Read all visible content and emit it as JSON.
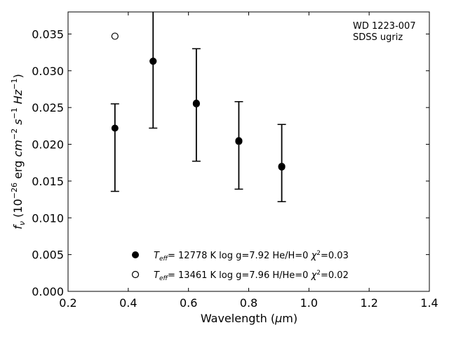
{
  "chart_data": {
    "type": "scatter",
    "xlabel": "Wavelength (μm)",
    "ylabel": "f_ν (10^−26 erg cm^−2 s^−1 Hz^−1)",
    "xlim": [
      0.2,
      1.4
    ],
    "ylim": [
      0.0,
      0.038
    ],
    "x_ticks": [
      "0.2",
      "0.4",
      "0.6",
      "0.8",
      "1.0",
      "1.2",
      "1.4"
    ],
    "y_ticks": [
      "0.000",
      "0.005",
      "0.010",
      "0.015",
      "0.020",
      "0.025",
      "0.030",
      "0.035"
    ],
    "annotation": [
      "WD 1223-007",
      "SDSS ugriz"
    ],
    "grid": false,
    "legend_position": "bottom-center",
    "series": [
      {
        "kind": "filled",
        "name_parts": {
          "teff": "= 12778 K  log g=7.92  He/H=0  ",
          "chi": "=0.03"
        },
        "points": [
          {
            "x": 0.3557,
            "y": 0.0222,
            "yerr_low": 0.0136,
            "yerr_high": 0.0255
          },
          {
            "x": 0.4825,
            "y": 0.0313,
            "yerr_low": 0.0222,
            "yerr_high": 0.0382
          },
          {
            "x": 0.6261,
            "y": 0.0256,
            "yerr_low": 0.0177,
            "yerr_high": 0.033
          },
          {
            "x": 0.7672,
            "y": 0.0205,
            "yerr_low": 0.0139,
            "yerr_high": 0.0258
          },
          {
            "x": 0.9097,
            "y": 0.0169,
            "yerr_low": 0.0122,
            "yerr_high": 0.0227
          }
        ]
      },
      {
        "kind": "open",
        "name_parts": {
          "teff": "= 13461 K  log g=7.96  H/He=0  ",
          "chi": "=0.02"
        },
        "points": [
          {
            "x": 0.3557,
            "y": 0.0347
          },
          {
            "x": 0.4825,
            "y": 0.0313
          },
          {
            "x": 0.6261,
            "y": 0.0255
          },
          {
            "x": 0.7672,
            "y": 0.0204
          },
          {
            "x": 0.9097,
            "y": 0.017
          }
        ]
      }
    ]
  }
}
